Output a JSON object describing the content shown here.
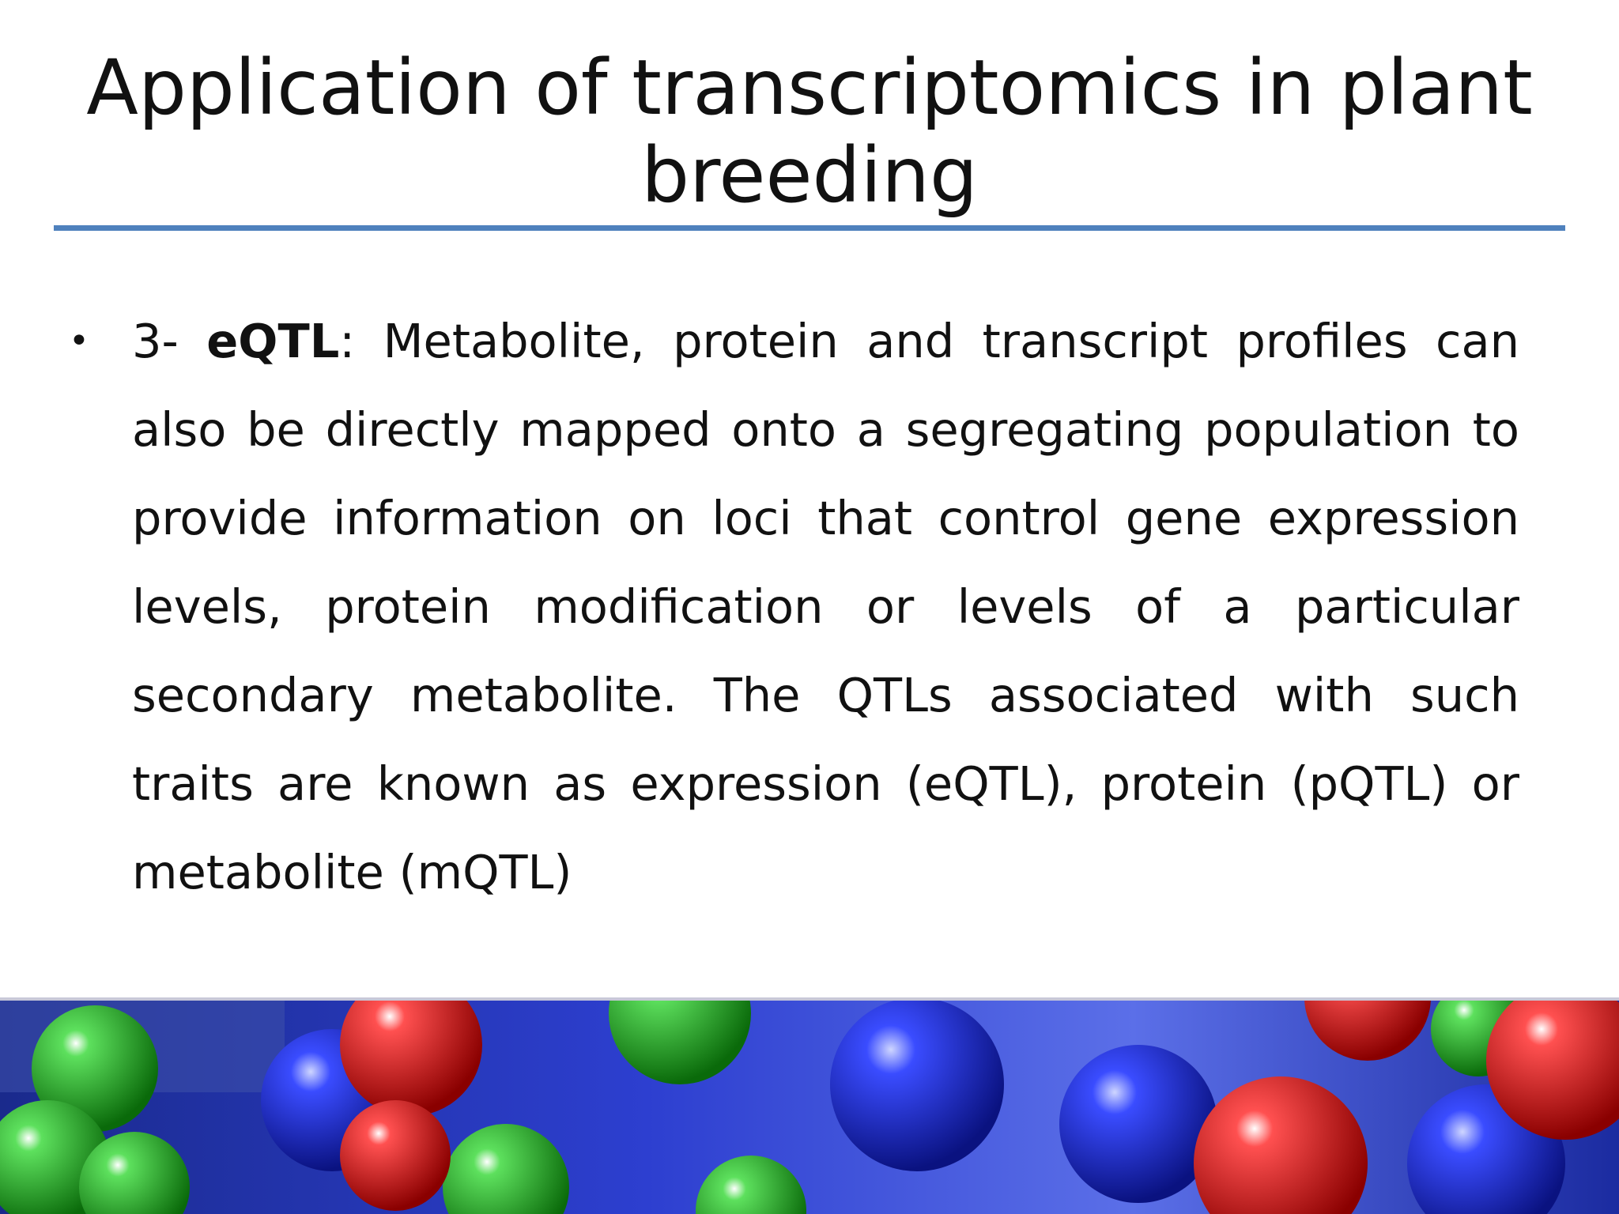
{
  "slide": {
    "title": "Application of transcriptomics in plant breeding",
    "bullets": [
      {
        "number": "3-",
        "term": "eQTL",
        "text": ": Metabolite, protein and transcript profiles can also be directly mapped onto a segregating population to provide information on loci that control gene expression levels, protein modification or levels of a particular secondary metabolite. The QTLs associated with such traits are known as expression (eQTL), protein (pQTL) or metabolite (mQTL)"
      }
    ]
  }
}
